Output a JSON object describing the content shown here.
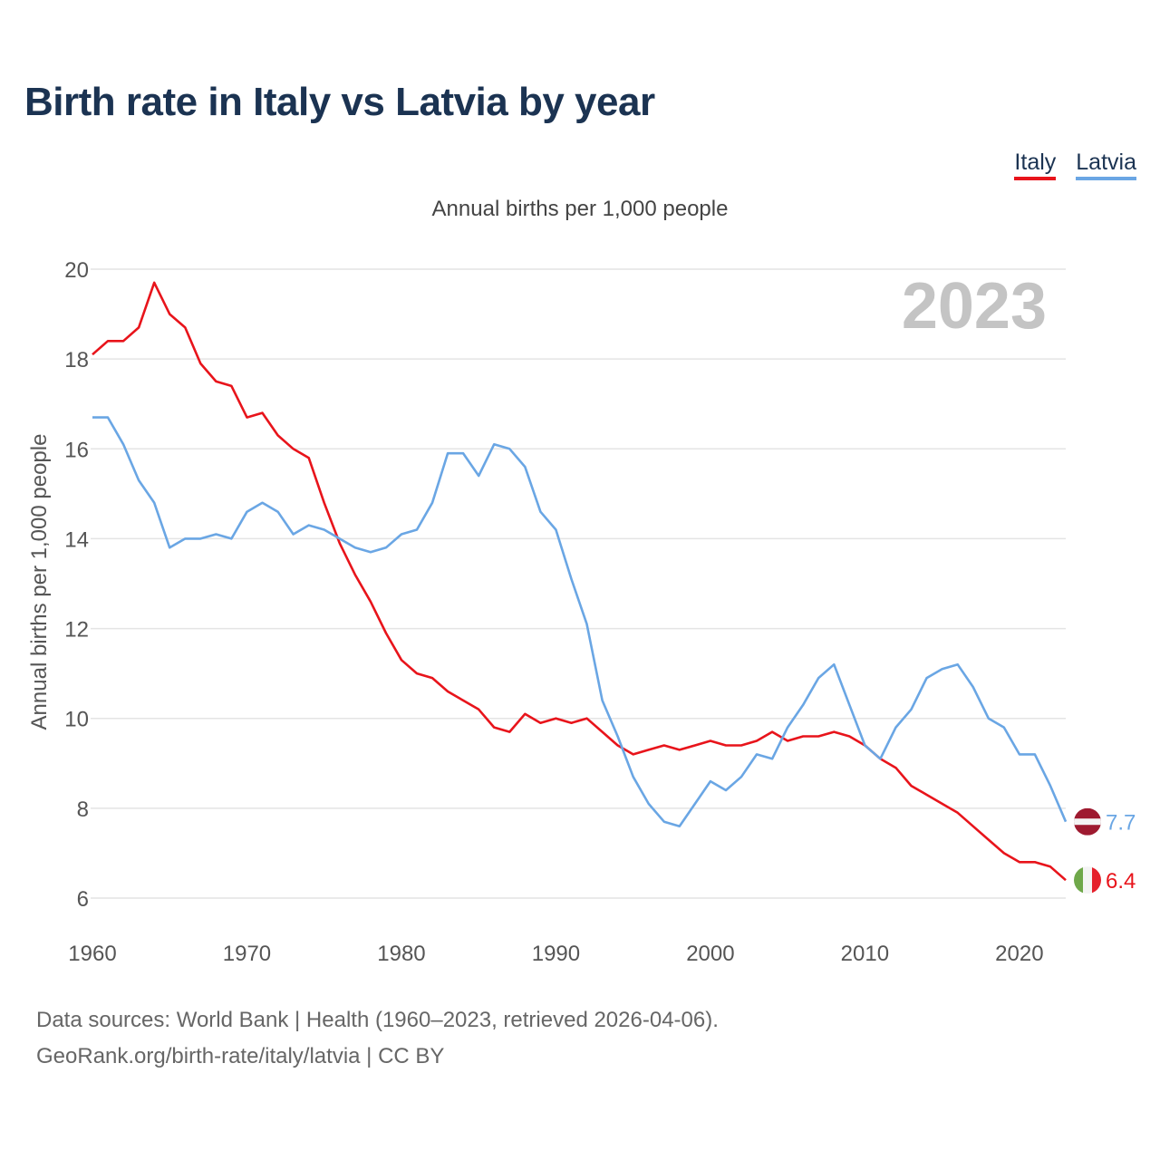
{
  "page": {
    "title": "Birth rate in Italy vs Latvia by year",
    "footer": {
      "sources": "Data sources: World Bank | Health (1960–2023, retrieved 2026-04-06).",
      "credit": "GeoRank.org/birth-rate/italy/latvia | CC BY"
    }
  },
  "chart_data": {
    "type": "line",
    "title": "Birth rate in Italy vs Latvia by year",
    "subtitle": "Annual births per 1,000 people",
    "xlabel": "",
    "ylabel": "Annual births per 1,000 people",
    "year_label": "2023",
    "xlim": [
      1960,
      2023
    ],
    "ylim": [
      5,
      20.5
    ],
    "x_ticks": [
      1960,
      1970,
      1980,
      1990,
      2000,
      2010,
      2020
    ],
    "y_ticks": [
      6,
      8,
      10,
      12,
      14,
      16,
      18,
      20
    ],
    "grid": true,
    "legend_position": "top-right",
    "colors": {
      "Italy": "#e8141b",
      "Latvia": "#6aa6e4",
      "title": "#1b3352"
    },
    "x": [
      1960,
      1961,
      1962,
      1963,
      1964,
      1965,
      1966,
      1967,
      1968,
      1969,
      1970,
      1971,
      1972,
      1973,
      1974,
      1975,
      1976,
      1977,
      1978,
      1979,
      1980,
      1981,
      1982,
      1983,
      1984,
      1985,
      1986,
      1987,
      1988,
      1989,
      1990,
      1991,
      1992,
      1993,
      1994,
      1995,
      1996,
      1997,
      1998,
      1999,
      2000,
      2001,
      2002,
      2003,
      2004,
      2005,
      2006,
      2007,
      2008,
      2009,
      2010,
      2011,
      2012,
      2013,
      2014,
      2015,
      2016,
      2017,
      2018,
      2019,
      2020,
      2021,
      2022,
      2023
    ],
    "series": [
      {
        "name": "Italy",
        "end_label": "6.4",
        "flag": "italy-flag",
        "values": [
          18.1,
          18.4,
          18.4,
          18.7,
          19.7,
          19.0,
          18.7,
          17.9,
          17.5,
          17.4,
          16.7,
          16.8,
          16.3,
          16.0,
          15.8,
          14.8,
          13.9,
          13.2,
          12.6,
          11.9,
          11.3,
          11.0,
          10.9,
          10.6,
          10.4,
          10.2,
          9.8,
          9.7,
          10.1,
          9.9,
          10.0,
          9.9,
          10.0,
          9.7,
          9.4,
          9.2,
          9.3,
          9.4,
          9.3,
          9.4,
          9.5,
          9.4,
          9.4,
          9.5,
          9.7,
          9.5,
          9.6,
          9.6,
          9.7,
          9.6,
          9.4,
          9.1,
          8.9,
          8.5,
          8.3,
          8.1,
          7.9,
          7.6,
          7.3,
          7.0,
          6.8,
          6.8,
          6.7,
          6.4
        ]
      },
      {
        "name": "Latvia",
        "end_label": "7.7",
        "flag": "latvia-flag",
        "values": [
          16.7,
          16.7,
          16.1,
          15.3,
          14.8,
          13.8,
          14.0,
          14.0,
          14.1,
          14.0,
          14.6,
          14.8,
          14.6,
          14.1,
          14.3,
          14.2,
          14.0,
          13.8,
          13.7,
          13.8,
          14.1,
          14.2,
          14.8,
          15.9,
          15.9,
          15.4,
          16.1,
          16.0,
          15.6,
          14.6,
          14.2,
          13.1,
          12.1,
          10.4,
          9.6,
          8.7,
          8.1,
          7.7,
          7.6,
          8.1,
          8.6,
          8.4,
          8.7,
          9.2,
          9.1,
          9.8,
          10.3,
          10.9,
          11.2,
          10.3,
          9.4,
          9.1,
          9.8,
          10.2,
          10.9,
          11.1,
          11.2,
          10.7,
          10.0,
          9.8,
          9.2,
          9.2,
          8.5,
          7.7
        ]
      }
    ]
  }
}
